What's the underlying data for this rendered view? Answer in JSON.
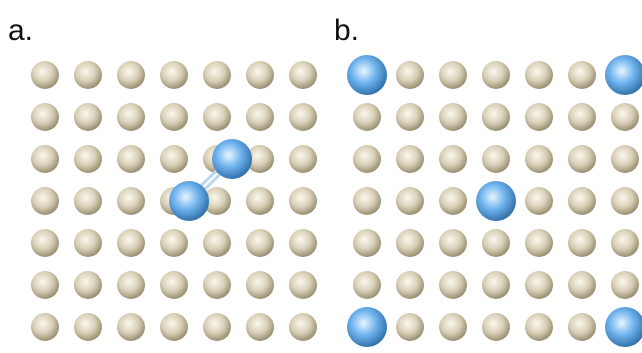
{
  "panels": [
    {
      "label": "a.",
      "grid": {
        "rows": 7,
        "cols": 7
      },
      "host_atom": "gold-host-atom",
      "adsorbates": [
        {
          "kind": "blue-atom",
          "row": 3,
          "col": 3.35
        },
        {
          "kind": "blue-atom",
          "row": 2,
          "col": 4.35
        }
      ],
      "bonds": [
        {
          "from": 0,
          "to": 1
        }
      ]
    },
    {
      "label": "b.",
      "grid": {
        "rows": 7,
        "cols": 7
      },
      "host_atom": "gold-host-atom",
      "adsorbates": [
        {
          "kind": "blue-atom",
          "row": 0,
          "col": 0
        },
        {
          "kind": "blue-atom",
          "row": 0,
          "col": 6
        },
        {
          "kind": "blue-atom",
          "row": 3,
          "col": 3
        },
        {
          "kind": "blue-atom",
          "row": 6,
          "col": 0
        },
        {
          "kind": "blue-atom",
          "row": 6,
          "col": 6
        }
      ],
      "bonds": []
    }
  ],
  "colors": {
    "host_light": "#fbf8ee",
    "host_mid": "#d9d0b8",
    "host_dark": "#9a8f72",
    "adsorbate_light": "#e9f6ff",
    "adsorbate_mid": "#6fb3ee",
    "adsorbate_dark": "#2f6fa8",
    "bond": "#b9d8f0"
  }
}
